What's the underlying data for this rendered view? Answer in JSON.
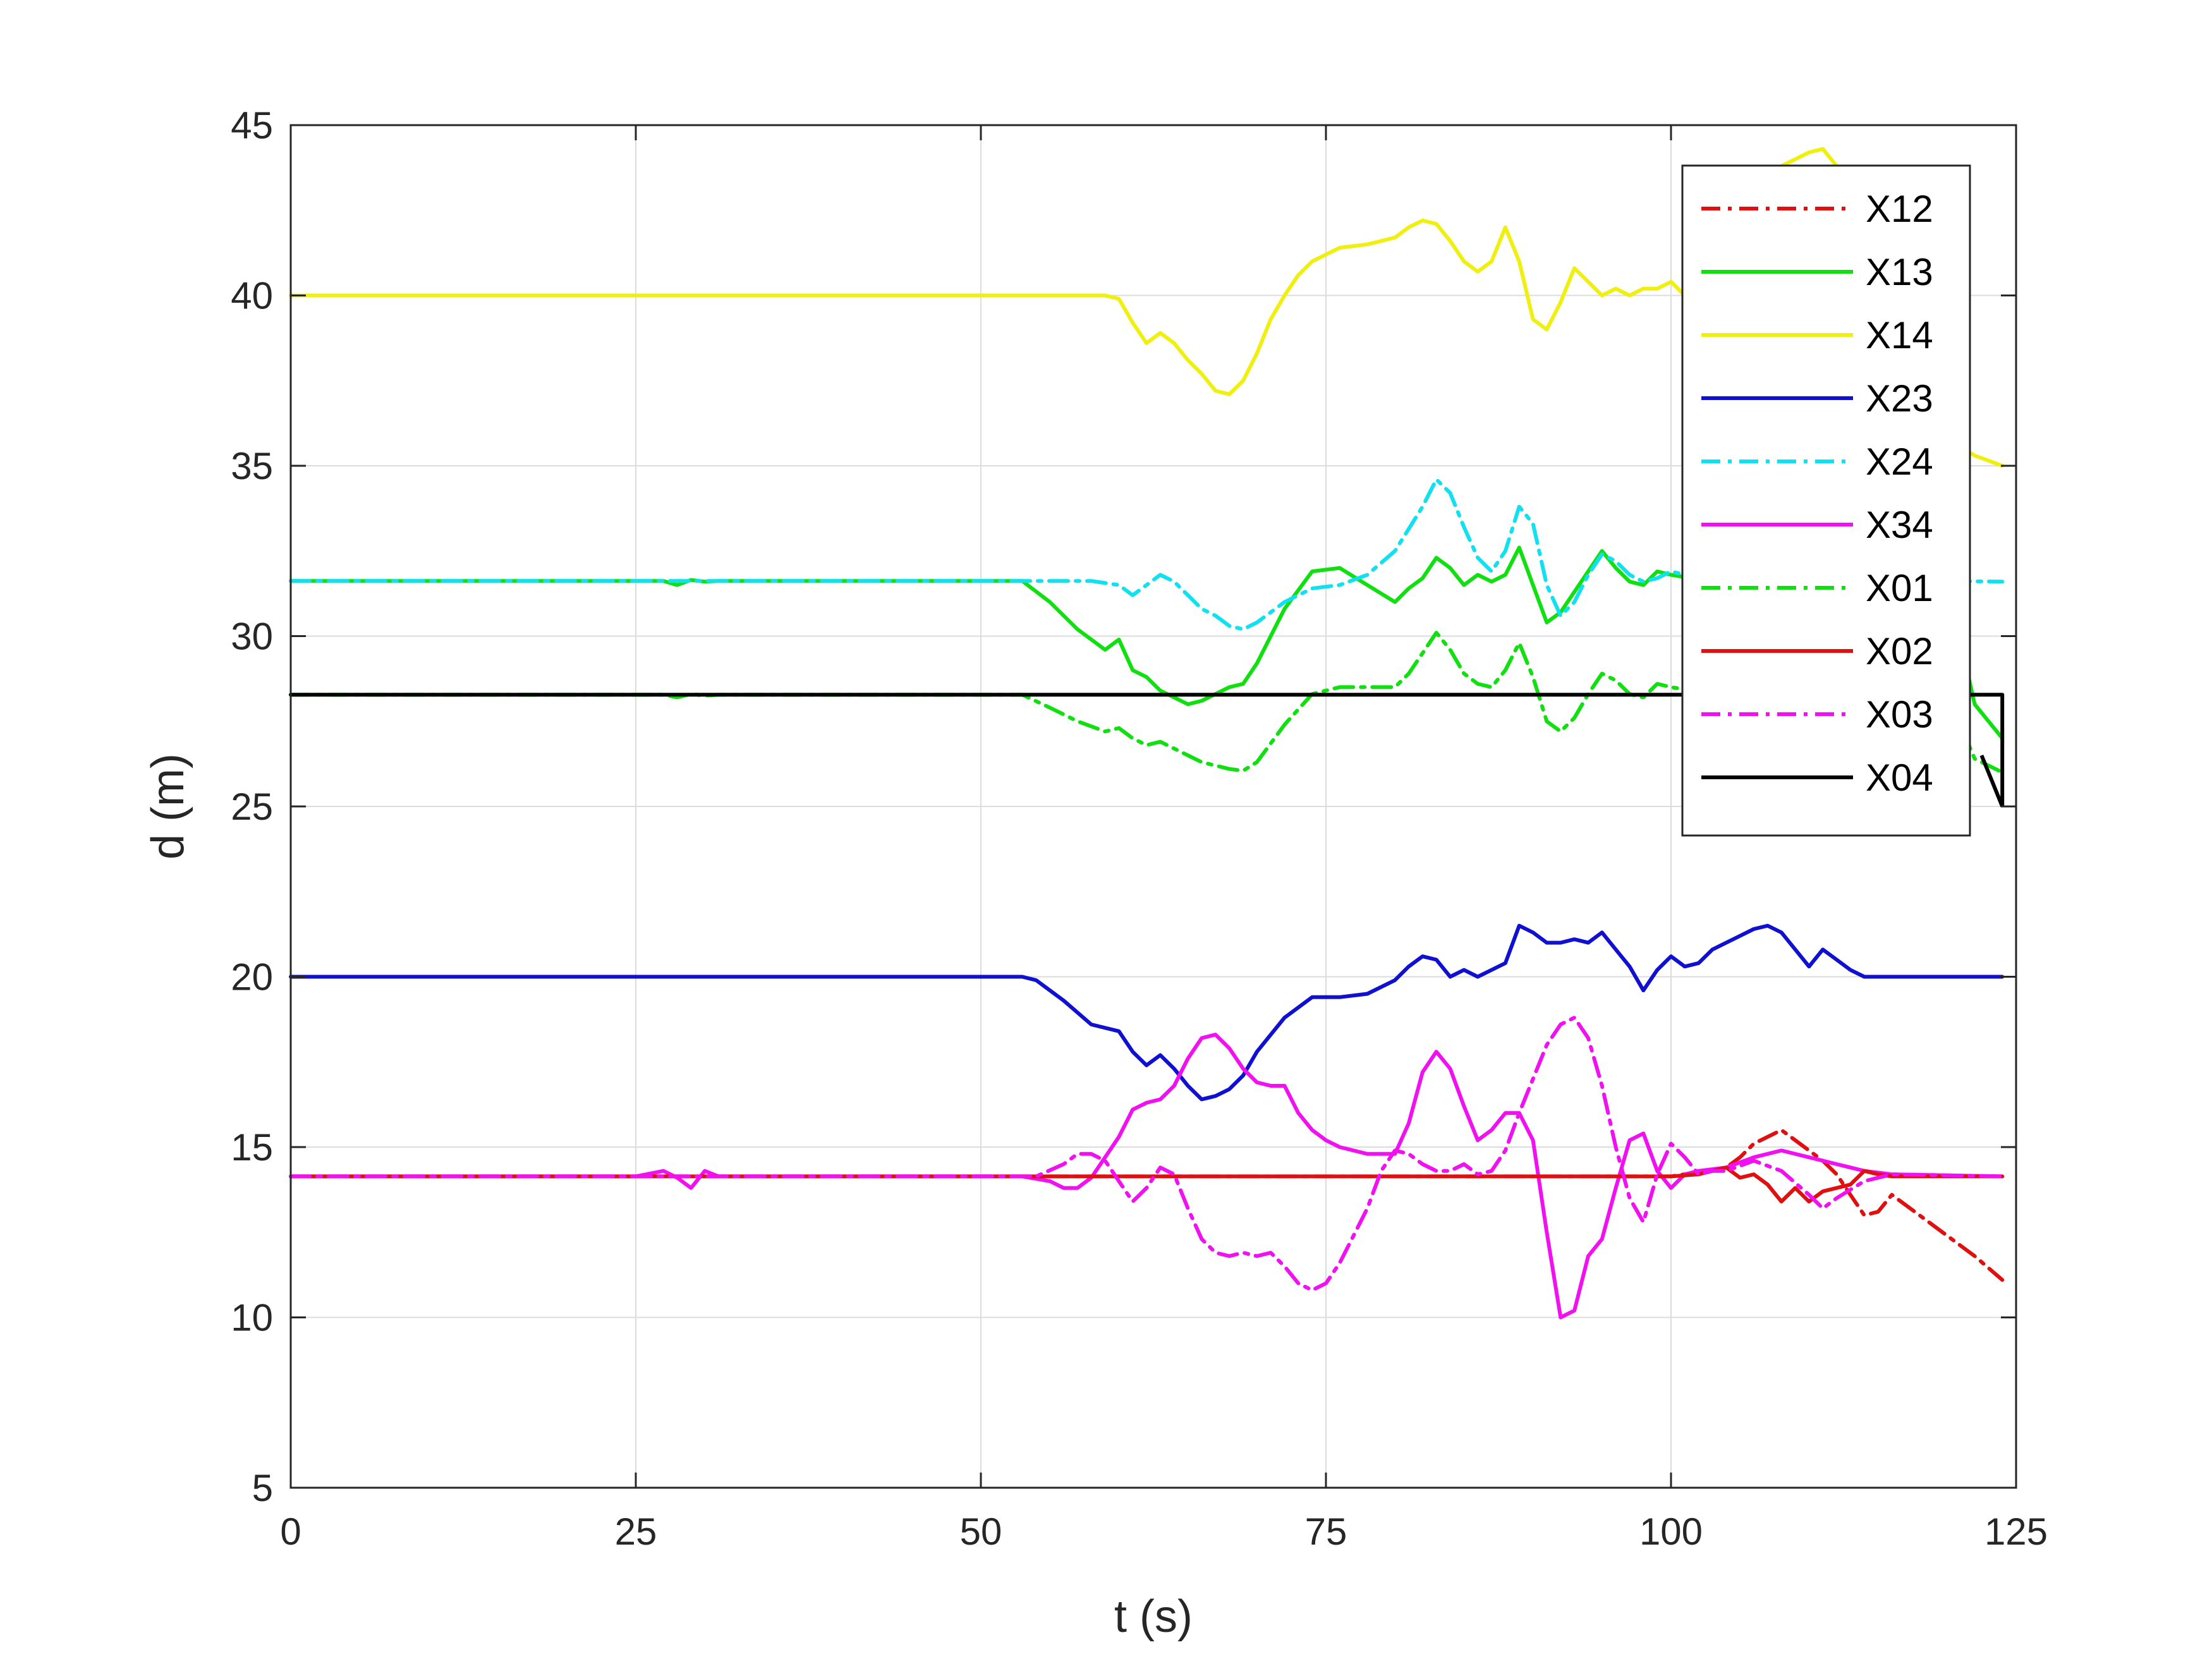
{
  "chart_data": {
    "type": "line",
    "xlabel": "t (s)",
    "ylabel": "d (m)",
    "xlim": [
      0,
      125
    ],
    "ylim": [
      5,
      45
    ],
    "xticks": [
      0,
      25,
      50,
      75,
      100,
      125
    ],
    "yticks": [
      5,
      10,
      15,
      20,
      25,
      30,
      35,
      40,
      45
    ],
    "grid": true,
    "legend_position": "top-right",
    "series": [
      {
        "name": "X12",
        "color": "#e01010",
        "dash": "dashdot",
        "x": [
          0,
          100,
          104,
          105,
          106,
          107,
          108,
          109,
          110,
          111,
          112,
          113,
          114,
          115,
          116,
          118,
          120,
          122,
          124
        ],
        "y": [
          14.14,
          14.14,
          14.4,
          14.7,
          15.1,
          15.3,
          15.5,
          15.2,
          14.9,
          14.6,
          14.2,
          13.6,
          13.0,
          13.1,
          13.6,
          13.0,
          12.4,
          11.8,
          11.1
        ]
      },
      {
        "name": "X13",
        "color": "#10e010",
        "dash": "solid",
        "x": [
          0,
          27,
          28,
          29,
          30,
          31,
          53,
          55,
          57,
          59,
          60,
          61,
          62,
          63,
          64,
          65,
          66,
          67,
          68,
          69,
          70,
          72,
          74,
          76,
          78,
          80,
          81,
          82,
          83,
          84,
          85,
          86,
          87,
          88,
          89,
          90,
          91,
          92,
          93,
          94,
          95,
          96,
          97,
          98,
          99,
          100,
          103,
          120,
          122,
          124
        ],
        "y": [
          31.62,
          31.62,
          31.5,
          31.65,
          31.6,
          31.62,
          31.62,
          31.0,
          30.2,
          29.6,
          29.9,
          29.0,
          28.8,
          28.4,
          28.2,
          28.0,
          28.1,
          28.3,
          28.5,
          28.6,
          29.2,
          30.8,
          31.9,
          32.0,
          31.5,
          31.0,
          31.4,
          31.7,
          32.3,
          32.0,
          31.5,
          31.8,
          31.6,
          31.8,
          32.6,
          31.5,
          30.4,
          30.7,
          31.3,
          31.9,
          32.5,
          32.0,
          31.6,
          31.5,
          31.9,
          31.8,
          31.6,
          31.6,
          28.0,
          27.0
        ]
      },
      {
        "name": "X14",
        "color": "#f0f010",
        "dash": "solid",
        "x": [
          0,
          59,
          60,
          61,
          62,
          63,
          64,
          65,
          66,
          67,
          68,
          69,
          70,
          71,
          72,
          73,
          74,
          75,
          76,
          78,
          80,
          81,
          82,
          83,
          84,
          85,
          86,
          87,
          88,
          89,
          90,
          91,
          92,
          93,
          94,
          95,
          96,
          97,
          98,
          99,
          100,
          101,
          102,
          106,
          108,
          109,
          110,
          111,
          112,
          113,
          114,
          116,
          118,
          120,
          122,
          124
        ],
        "y": [
          40.0,
          40.0,
          39.9,
          39.2,
          38.6,
          38.9,
          38.6,
          38.1,
          37.7,
          37.2,
          37.1,
          37.5,
          38.3,
          39.3,
          40.0,
          40.6,
          41.0,
          41.2,
          41.4,
          41.5,
          41.7,
          42.0,
          42.2,
          42.1,
          41.6,
          41.0,
          40.7,
          41.0,
          42.0,
          41.0,
          39.3,
          39.0,
          39.8,
          40.8,
          40.4,
          40.0,
          40.2,
          40.0,
          40.2,
          40.2,
          40.4,
          40.0,
          40.1,
          40.5,
          43.8,
          44.0,
          44.2,
          44.3,
          43.8,
          43.0,
          41.0,
          38.5,
          36.8,
          35.8,
          35.3,
          35.0
        ]
      },
      {
        "name": "X23",
        "color": "#1010d0",
        "dash": "solid",
        "x": [
          0,
          53,
          54,
          56,
          58,
          60,
          61,
          62,
          63,
          64,
          65,
          66,
          67,
          68,
          69,
          70,
          72,
          74,
          76,
          78,
          80,
          81,
          82,
          83,
          84,
          85,
          86,
          87,
          88,
          89,
          90,
          91,
          92,
          93,
          94,
          95,
          96,
          97,
          98,
          99,
          100,
          101,
          102,
          103,
          104,
          105,
          106,
          107,
          108,
          109,
          110,
          111,
          112,
          113,
          114,
          116,
          118,
          124
        ],
        "y": [
          20.0,
          20.0,
          19.9,
          19.3,
          18.6,
          18.4,
          17.8,
          17.4,
          17.7,
          17.3,
          16.8,
          16.4,
          16.5,
          16.7,
          17.1,
          17.8,
          18.8,
          19.4,
          19.4,
          19.5,
          19.9,
          20.3,
          20.6,
          20.5,
          20.0,
          20.2,
          20.0,
          20.2,
          20.4,
          21.5,
          21.3,
          21.0,
          21.0,
          21.1,
          21.0,
          21.3,
          20.8,
          20.3,
          19.6,
          20.2,
          20.6,
          20.3,
          20.4,
          20.8,
          21.0,
          21.2,
          21.4,
          21.5,
          21.3,
          20.8,
          20.3,
          20.8,
          20.5,
          20.2,
          20.0,
          20.0,
          20.0,
          20.0
        ]
      },
      {
        "name": "X24",
        "color": "#10e0f0",
        "dash": "dashdot",
        "x": [
          0,
          58,
          60,
          61,
          62,
          63,
          64,
          65,
          66,
          67,
          68,
          69,
          70,
          72,
          74,
          76,
          78,
          80,
          82,
          83,
          84,
          85,
          86,
          87,
          88,
          89,
          90,
          91,
          92,
          93,
          94,
          95,
          96,
          97,
          98,
          99,
          100,
          102,
          124
        ],
        "y": [
          31.62,
          31.62,
          31.5,
          31.2,
          31.5,
          31.8,
          31.6,
          31.2,
          30.8,
          30.6,
          30.3,
          30.2,
          30.4,
          31.0,
          31.4,
          31.5,
          31.8,
          32.5,
          33.8,
          34.6,
          34.2,
          33.2,
          32.3,
          31.9,
          32.5,
          33.8,
          33.3,
          31.5,
          30.6,
          31.0,
          31.8,
          32.4,
          32.2,
          31.8,
          31.6,
          31.7,
          31.9,
          31.7,
          31.6
        ]
      },
      {
        "name": "X34",
        "color": "#f010f0",
        "dash": "solid",
        "x": [
          0,
          25,
          27,
          28,
          29,
          30,
          31,
          53,
          55,
          56,
          57,
          58,
          59,
          60,
          61,
          62,
          63,
          64,
          65,
          66,
          67,
          68,
          69,
          70,
          71,
          72,
          73,
          74,
          75,
          76,
          78,
          80,
          81,
          82,
          83,
          84,
          85,
          86,
          87,
          88,
          89,
          90,
          91,
          92,
          93,
          94,
          95,
          96,
          97,
          98,
          99,
          100,
          101,
          102,
          104,
          106,
          108,
          110,
          112,
          114,
          116,
          124
        ],
        "y": [
          14.14,
          14.14,
          14.3,
          14.1,
          13.8,
          14.3,
          14.14,
          14.14,
          14.0,
          13.8,
          13.8,
          14.1,
          14.7,
          15.3,
          16.1,
          16.3,
          16.4,
          16.8,
          17.6,
          18.2,
          18.3,
          17.9,
          17.3,
          16.9,
          16.8,
          16.8,
          16.0,
          15.5,
          15.2,
          15.0,
          14.8,
          14.8,
          15.7,
          17.2,
          17.8,
          17.3,
          16.2,
          15.2,
          15.5,
          16.0,
          16.0,
          15.2,
          12.5,
          10.0,
          10.2,
          11.8,
          12.3,
          13.8,
          15.2,
          15.4,
          14.3,
          13.8,
          14.2,
          14.3,
          14.4,
          14.7,
          14.9,
          14.7,
          14.5,
          14.3,
          14.2,
          14.14
        ]
      },
      {
        "name": "X01",
        "color": "#10e010",
        "dash": "dashdot",
        "x": [
          0,
          27,
          28,
          29,
          30,
          31,
          53,
          55,
          57,
          59,
          60,
          61,
          62,
          63,
          64,
          65,
          66,
          67,
          68,
          69,
          70,
          72,
          74,
          76,
          78,
          80,
          81,
          82,
          83,
          84,
          85,
          86,
          87,
          88,
          89,
          90,
          91,
          92,
          93,
          94,
          95,
          96,
          97,
          98,
          99,
          100,
          103,
          120,
          122,
          124
        ],
        "y": [
          28.28,
          28.28,
          28.2,
          28.3,
          28.25,
          28.28,
          28.28,
          27.9,
          27.5,
          27.2,
          27.3,
          27.0,
          26.8,
          26.9,
          26.7,
          26.5,
          26.3,
          26.2,
          26.1,
          26.05,
          26.3,
          27.4,
          28.3,
          28.5,
          28.5,
          28.5,
          28.9,
          29.5,
          30.1,
          29.6,
          28.9,
          28.6,
          28.5,
          29.0,
          29.8,
          28.8,
          27.5,
          27.2,
          27.6,
          28.3,
          28.9,
          28.7,
          28.3,
          28.2,
          28.6,
          28.5,
          28.3,
          28.3,
          26.4,
          26.0
        ]
      },
      {
        "name": "X02",
        "color": "#e01010",
        "dash": "solid",
        "x": [
          0,
          100,
          102,
          104,
          105,
          106,
          107,
          108,
          109,
          110,
          111,
          112,
          113,
          114,
          115,
          116,
          124
        ],
        "y": [
          14.14,
          14.14,
          14.2,
          14.4,
          14.1,
          14.2,
          13.9,
          13.4,
          13.8,
          13.4,
          13.7,
          13.8,
          13.9,
          14.3,
          14.2,
          14.14,
          14.14
        ]
      },
      {
        "name": "X03",
        "color": "#f010f0",
        "dash": "dashdot",
        "x": [
          0,
          54,
          56,
          57,
          58,
          59,
          60,
          61,
          62,
          63,
          64,
          65,
          66,
          67,
          68,
          69,
          70,
          71,
          72,
          73,
          74,
          75,
          76,
          78,
          79,
          80,
          81,
          82,
          83,
          84,
          85,
          86,
          87,
          88,
          89,
          90,
          91,
          92,
          93,
          94,
          95,
          96,
          97,
          98,
          99,
          100,
          101,
          102,
          103,
          104,
          106,
          108,
          110,
          111,
          112,
          114,
          116,
          124
        ],
        "y": [
          14.14,
          14.14,
          14.5,
          14.8,
          14.8,
          14.6,
          14.0,
          13.4,
          13.8,
          14.4,
          14.2,
          13.2,
          12.3,
          11.9,
          11.8,
          11.9,
          11.8,
          11.9,
          11.5,
          11.0,
          10.8,
          11.0,
          11.6,
          13.2,
          14.3,
          14.9,
          14.8,
          14.5,
          14.3,
          14.3,
          14.5,
          14.2,
          14.3,
          14.9,
          16.0,
          17.0,
          18.0,
          18.6,
          18.8,
          18.2,
          16.8,
          15.0,
          13.5,
          12.8,
          14.2,
          15.1,
          14.7,
          14.2,
          14.3,
          14.3,
          14.6,
          14.3,
          13.6,
          13.2,
          13.5,
          14.0,
          14.2,
          14.14
        ]
      },
      {
        "name": "X04",
        "color": "#000000",
        "dash": "solid",
        "x": [
          0,
          60,
          70,
          80,
          90,
          100,
          110,
          120,
          124
        ],
        "y": [
          28.28,
          28.28,
          28.28,
          28.28,
          28.28,
          28.28,
          28.28,
          28.28,
          28.28
        ],
        "tail": [
          [
            124,
            28.28
          ],
          [
            124,
            25.0
          ],
          [
            122.5,
            26.5
          ]
        ]
      }
    ]
  }
}
